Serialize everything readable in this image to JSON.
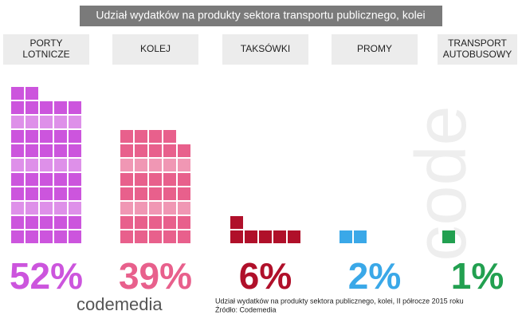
{
  "chart_data": {
    "type": "waffle",
    "title": "Udział wydatków na produkty sektora transportu publicznego, kolei",
    "categories": [
      "PORTY LOTNICZE",
      "KOLEJ",
      "TAKSÓWKI",
      "PROMY",
      "TRANSPORT AUTOBUSOWY"
    ],
    "values": [
      52,
      39,
      6,
      2,
      1
    ],
    "value_labels": [
      "52%",
      "39%",
      "6%",
      "2%",
      "1%"
    ],
    "colors": [
      "#cc55dd",
      "#e8608c",
      "#b0102a",
      "#3aa8e8",
      "#22a050"
    ],
    "note": "Udział wydatków na produkty sektora publicznego, kolei, II  półrocze 2015 roku",
    "source": "Źródło: Codemedia",
    "logo": "codemedia",
    "watermark": "code"
  }
}
